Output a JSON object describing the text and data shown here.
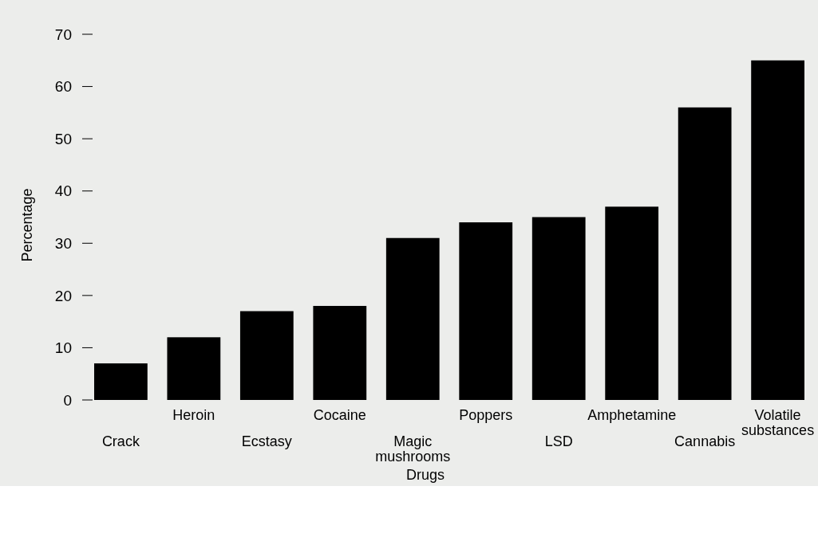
{
  "chart_data": {
    "type": "bar",
    "xlabel": "Drugs",
    "ylabel": "Percentage",
    "categories": [
      "Crack",
      "Heroin",
      "Ecstasy",
      "Cocaine",
      "Magic mushrooms",
      "Poppers",
      "LSD",
      "Amphetamine",
      "Cannabis",
      "Volatile substances"
    ],
    "values": [
      7,
      12,
      17,
      18,
      31,
      34,
      35,
      37,
      56,
      65
    ],
    "color": "#000000",
    "ylim": [
      0,
      70
    ],
    "yticks": [
      0,
      10,
      20,
      30,
      40,
      50,
      60,
      70
    ],
    "grid": false
  }
}
